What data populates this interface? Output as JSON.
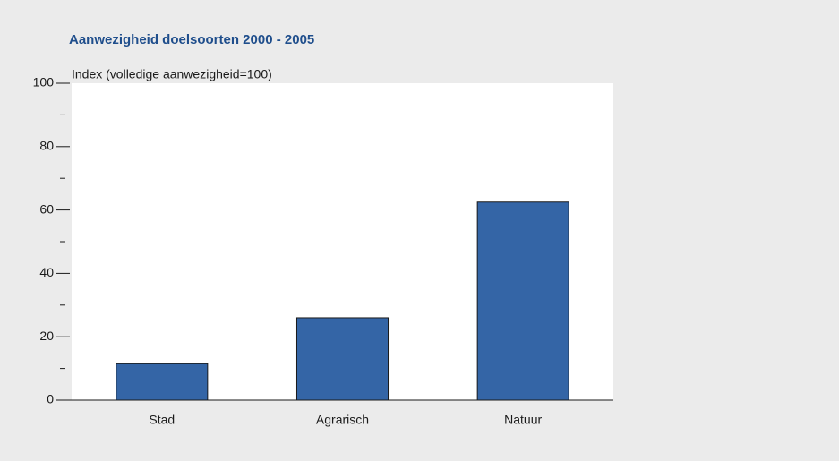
{
  "chart_data": {
    "type": "bar",
    "title": "Aanwezigheid doelsoorten 2000 - 2005",
    "y_label": "Index (volledige aanwezigheid=100)",
    "categories": [
      "Stad",
      "Agrarisch",
      "Natuur"
    ],
    "values": [
      11.5,
      26,
      62.5
    ],
    "color": "#3465a6",
    "ylim": [
      0,
      100
    ],
    "yticks": [
      0,
      20,
      40,
      60,
      80,
      100
    ],
    "yticks_minor": [
      10,
      30,
      50,
      70,
      90
    ],
    "grid": false
  }
}
